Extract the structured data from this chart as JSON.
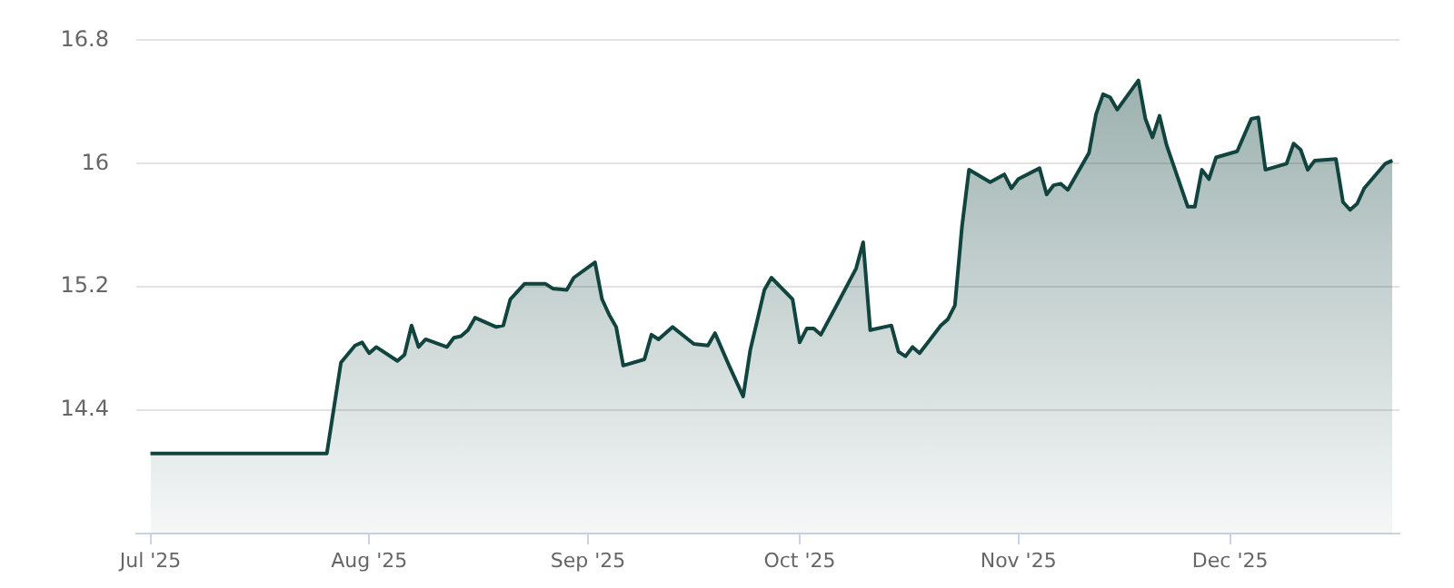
{
  "chart_data": {
    "type": "area",
    "x": [
      "2025-07-01",
      "2025-07-26",
      "2025-07-28",
      "2025-07-30",
      "2025-07-31",
      "2025-08-01",
      "2025-08-02",
      "2025-08-05",
      "2025-08-06",
      "2025-08-07",
      "2025-08-08",
      "2025-08-09",
      "2025-08-12",
      "2025-08-13",
      "2025-08-14",
      "2025-08-15",
      "2025-08-16",
      "2025-08-19",
      "2025-08-20",
      "2025-08-21",
      "2025-08-23",
      "2025-08-26",
      "2025-08-27",
      "2025-08-29",
      "2025-08-30",
      "2025-09-02",
      "2025-09-03",
      "2025-09-04",
      "2025-09-05",
      "2025-09-06",
      "2025-09-09",
      "2025-09-10",
      "2025-09-11",
      "2025-09-13",
      "2025-09-16",
      "2025-09-18",
      "2025-09-19",
      "2025-09-21",
      "2025-09-23",
      "2025-09-24",
      "2025-09-26",
      "2025-09-27",
      "2025-09-30",
      "2025-10-01",
      "2025-10-02",
      "2025-10-03",
      "2025-10-04",
      "2025-10-06",
      "2025-10-09",
      "2025-10-10",
      "2025-10-11",
      "2025-10-14",
      "2025-10-15",
      "2025-10-16",
      "2025-10-17",
      "2025-10-18",
      "2025-10-21",
      "2025-10-22",
      "2025-10-23",
      "2025-10-24",
      "2025-10-25",
      "2025-10-28",
      "2025-10-30",
      "2025-10-31",
      "2025-11-01",
      "2025-11-04",
      "2025-11-05",
      "2025-11-06",
      "2025-11-07",
      "2025-11-08",
      "2025-11-11",
      "2025-11-12",
      "2025-11-13",
      "2025-11-14",
      "2025-11-15",
      "2025-11-18",
      "2025-11-19",
      "2025-11-20",
      "2025-11-21",
      "2025-11-22",
      "2025-11-25",
      "2025-11-26",
      "2025-11-27",
      "2025-11-28",
      "2025-11-29",
      "2025-12-02",
      "2025-12-04",
      "2025-12-05",
      "2025-12-06",
      "2025-12-09",
      "2025-12-10",
      "2025-12-11",
      "2025-12-12",
      "2025-12-13",
      "2025-12-16",
      "2025-12-17",
      "2025-12-18",
      "2025-12-19",
      "2025-12-20",
      "2025-12-23",
      "2025-12-24"
    ],
    "series": [
      {
        "color": "#12443f",
        "values": [
          14.12,
          14.12,
          14.71,
          14.82,
          14.84,
          14.77,
          14.81,
          14.72,
          14.76,
          14.95,
          14.81,
          14.86,
          14.81,
          14.87,
          14.88,
          14.92,
          15.0,
          14.94,
          14.95,
          15.12,
          15.22,
          15.22,
          15.19,
          15.18,
          15.26,
          15.36,
          15.12,
          15.02,
          14.94,
          14.69,
          14.73,
          14.89,
          14.86,
          14.94,
          14.83,
          14.82,
          14.9,
          14.69,
          14.49,
          14.79,
          15.18,
          15.26,
          15.12,
          14.84,
          14.93,
          14.93,
          14.89,
          15.06,
          15.32,
          15.49,
          14.92,
          14.95,
          14.78,
          14.75,
          14.81,
          14.77,
          14.95,
          14.99,
          15.08,
          15.59,
          15.96,
          15.88,
          15.93,
          15.84,
          15.9,
          15.97,
          15.8,
          15.86,
          15.87,
          15.83,
          16.07,
          16.32,
          16.45,
          16.43,
          16.35,
          16.54,
          16.29,
          16.17,
          16.31,
          16.12,
          15.72,
          15.72,
          15.96,
          15.9,
          16.04,
          16.08,
          16.29,
          16.3,
          15.96,
          16.0,
          16.13,
          16.09,
          15.96,
          16.02,
          16.03,
          15.75,
          15.7,
          15.74,
          15.84,
          16.0,
          16.02
        ]
      }
    ],
    "xlim": [
      "2025-06-29",
      "2025-12-25"
    ],
    "xticks": [
      {
        "value": "2025-07-01",
        "label": "Jul '25"
      },
      {
        "value": "2025-08-01",
        "label": "Aug '25"
      },
      {
        "value": "2025-09-01",
        "label": "Sep '25"
      },
      {
        "value": "2025-10-01",
        "label": "Oct '25"
      },
      {
        "value": "2025-11-01",
        "label": "Nov '25"
      },
      {
        "value": "2025-12-01",
        "label": "Dec '25"
      }
    ],
    "ylim": [
      13.6,
      16.8
    ],
    "yticks": [
      14.4,
      15.2,
      16,
      16.8
    ],
    "grid": "y",
    "legend": false,
    "marker": "none",
    "line_style": "solid"
  }
}
